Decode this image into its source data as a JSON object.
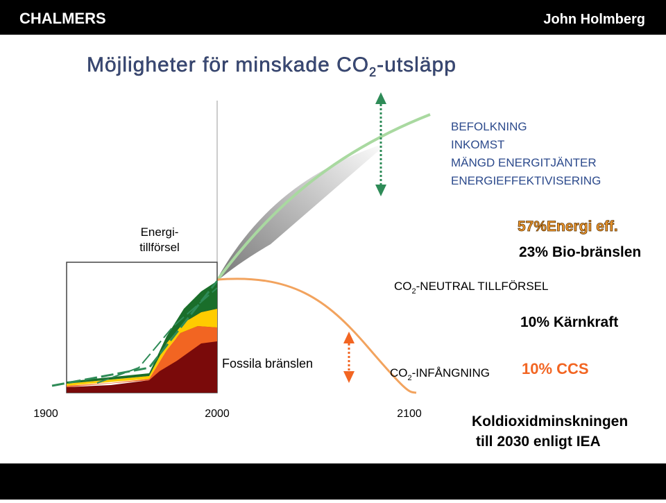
{
  "header": {
    "logo": "CHALMERS",
    "author": "John Holmberg"
  },
  "title": {
    "text": "Möjligheter för minskade CO",
    "sub": "2",
    "suffix": "-utsläpp"
  },
  "drivers": [
    "BEFOLKNING",
    "INKOMST",
    "MÄNGD ENERGITJÄNTER",
    "ENERGIEFFEKTIVISERING"
  ],
  "y_label": [
    "Energi-",
    "tillförsel"
  ],
  "measures": {
    "efficiency": "57%Energi eff.",
    "bio": "23% Bio-bränslen",
    "nuclear": "10% Kärnkraft",
    "ccs": "10% CCS"
  },
  "neutral": {
    "text": "CO",
    "sub": "2",
    "suffix": "-NEUTRAL TILLFÖRSEL"
  },
  "capture": {
    "text": "CO",
    "sub": "2",
    "suffix": "-INFÅNGNING"
  },
  "fossil": "Fossila bränslen",
  "x_labels": [
    "1900",
    "2000",
    "2100"
  ],
  "footnote": [
    "Koldioxidminskningen",
    "till 2030 enligt IEA"
  ]
}
